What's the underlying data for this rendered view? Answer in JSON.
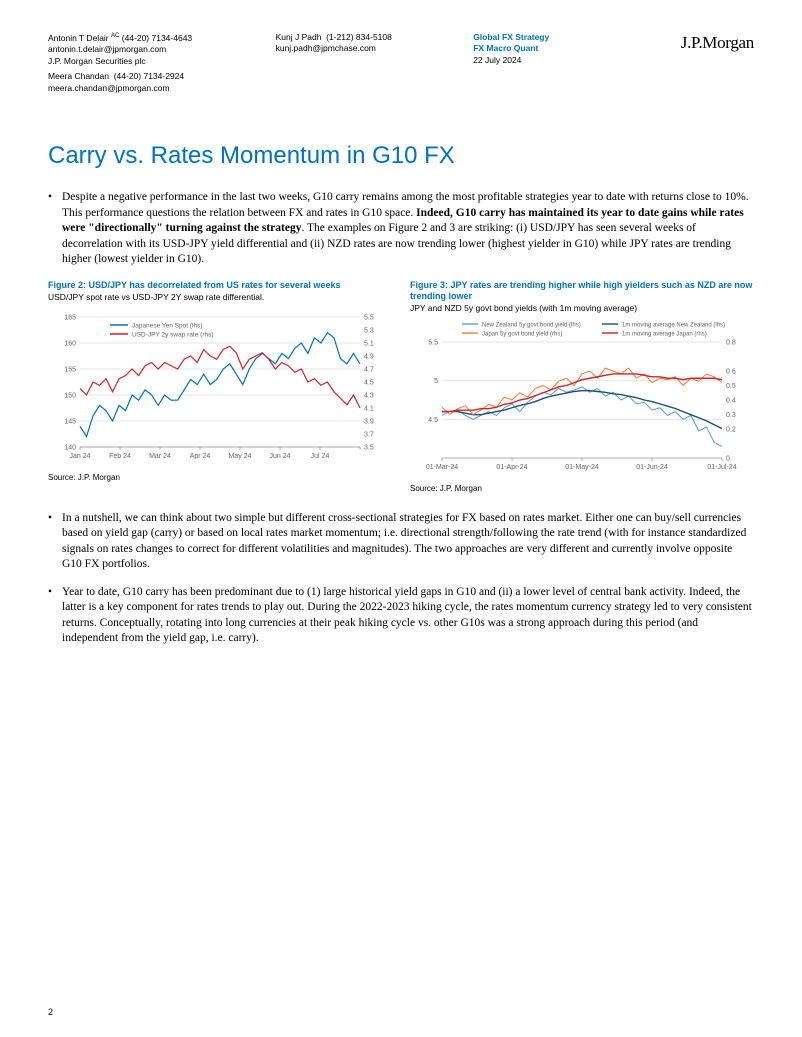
{
  "header": {
    "person1_name": "Antonin T Delair",
    "person1_sup": "AC",
    "person1_phone": "(44-20) 7134-4643",
    "person1_email": "antonin.t.delair@jpmorgan.com",
    "person1_org": "J.P. Morgan Securities plc",
    "person2_name": "Meera Chandan",
    "person2_phone": "(44-20) 7134-2924",
    "person2_email": "meera.chandan@jpmorgan.com",
    "person3_name": "Kunj J Padh",
    "person3_phone": "(1-212) 834-5108",
    "person3_email": "kunj.padh@jpmchase.com",
    "dept1": "Global FX Strategy",
    "dept2": "FX Macro Quant",
    "date": "22 July 2024",
    "logo": "J.P.Morgan"
  },
  "title": "Carry vs. Rates Momentum in G10 FX",
  "bullets": {
    "b1a": "Despite a negative performance in the last two weeks, G10 carry remains among the most profitable strategies year to date with returns close to 10%. This performance questions the relation between FX and rates in G10 space. ",
    "b1b": "Indeed, G10 carry has maintained its year to date gains while rates were \"directionally\" turning against the strategy",
    "b1c": ". The examples on Figure 2 and 3 are striking: (i) USD/JPY has seen several weeks of decorrelation with its USD-JPY yield differential and (ii) NZD rates are now trending lower (highest yielder in G10) while JPY rates are trending higher (lowest yielder in G10).",
    "b2": "In a nutshell, we can think about two simple but different cross-sectional strategies for FX based on rates market. Either one can buy/sell currencies based on yield gap (carry) or based on local rates market momentum; i.e. directional strength/following the rate trend (with for instance standardized signals on rates changes to correct for different volatilities and magnitudes). The two approaches are very different and currently involve opposite G10 FX portfolios.",
    "b3": "Year to date, G10 carry has been predominant due to (1) large historical yield gaps in G10 and (ii) a lower level of central bank activity. Indeed, the latter is a key component for rates trends to play out. During the 2022-2023 hiking cycle, the rates momentum currency strategy led to very consistent returns. Conceptually, rotating into long currencies at their peak hiking cycle vs. other G10s was a strong approach during this period (and independent from the yield gap, i.e. carry)."
  },
  "fig2": {
    "title": "Figure 2: USD/JPY has decorrelated from US rates for several weeks",
    "subtitle": "USD/JPY spot rate vs USD-JPY 2Y swap rate differential.",
    "source": "Source: J.P. Morgan",
    "legend1": "Japanese Yen Spot (lhs)",
    "legend2": "USD-JPY 2y swap rate (rhs)",
    "color1": "#0072c6",
    "color2": "#d6202a",
    "grid_color": "#cccccc",
    "text_color": "#666666",
    "y1_ticks": [
      140,
      145,
      150,
      155,
      160,
      165
    ],
    "y2_ticks": [
      3.5,
      3.7,
      3.9,
      4.1,
      4.3,
      4.5,
      4.7,
      4.9,
      5.1,
      5.3,
      5.5
    ],
    "x_labels": [
      "Jan 24",
      "Feb 24",
      "Mar 24",
      "Apr 24",
      "May 24",
      "Jun 24",
      "Jul 24",
      ""
    ],
    "series1": [
      144,
      142,
      146,
      148,
      147,
      145,
      148,
      147,
      150,
      149,
      151,
      150,
      148,
      150,
      149,
      149,
      151,
      153,
      152,
      154,
      152,
      153,
      155,
      156,
      154,
      152,
      155,
      157,
      158,
      157,
      156,
      158,
      157,
      159,
      160,
      158,
      161,
      160,
      162,
      161,
      157,
      156,
      158,
      156
    ],
    "series2": [
      4.4,
      4.3,
      4.5,
      4.45,
      4.55,
      4.35,
      4.55,
      4.6,
      4.7,
      4.6,
      4.75,
      4.8,
      4.7,
      4.8,
      4.75,
      4.7,
      4.85,
      4.9,
      4.8,
      5.0,
      4.9,
      4.85,
      5.0,
      5.05,
      4.95,
      4.7,
      4.85,
      4.9,
      4.95,
      4.85,
      4.7,
      4.8,
      4.75,
      4.65,
      4.7,
      4.5,
      4.55,
      4.45,
      4.5,
      4.35,
      4.25,
      4.15,
      4.3,
      4.1
    ]
  },
  "fig3": {
    "title": "Figure 3: JPY rates are trending higher while high yielders such as NZD are now trending lower",
    "subtitle": "JPY and NZD 5y govt bond yields (with 1m moving average)",
    "source": "Source: J.P. Morgan",
    "legend1": "New Zealand 5y govt bond yield (lhs)",
    "legend2": "1m moving average New Zealand (lhs)",
    "legend3": "Japan 5y govt bond yield (rhs)",
    "legend4": "1m moving average Japan (rhs)",
    "color_nz": "#5b9bd5",
    "color_nz_ma": "#1f4e79",
    "color_jp": "#ed7d31",
    "color_jp_ma": "#d6202a",
    "grid_color": "#cccccc",
    "text_color": "#666666",
    "y1_ticks": [
      4.5,
      5,
      5.5
    ],
    "y2_ticks": [
      0,
      0.2,
      0.3,
      0.4,
      0.5,
      0.6,
      0.8
    ],
    "x_labels": [
      "01-Mar-24",
      "01-Apr-24",
      "01-May-24",
      "01-Jun-24",
      "01-Jul-24"
    ],
    "nz": [
      4.55,
      4.6,
      4.62,
      4.55,
      4.5,
      4.55,
      4.6,
      4.55,
      4.65,
      4.7,
      4.6,
      4.72,
      4.8,
      4.85,
      4.82,
      4.9,
      4.85,
      4.88,
      4.92,
      4.85,
      4.9,
      4.8,
      4.85,
      4.75,
      4.8,
      4.7,
      4.72,
      4.62,
      4.65,
      4.55,
      4.6,
      4.5,
      4.55,
      4.35,
      4.4,
      4.2,
      4.15
    ],
    "nz_ma": [
      4.6,
      4.6,
      4.6,
      4.58,
      4.56,
      4.56,
      4.58,
      4.6,
      4.62,
      4.65,
      4.68,
      4.7,
      4.73,
      4.77,
      4.8,
      4.82,
      4.84,
      4.86,
      4.87,
      4.87,
      4.86,
      4.85,
      4.83,
      4.82,
      4.8,
      4.78,
      4.75,
      4.73,
      4.7,
      4.67,
      4.64,
      4.6,
      4.56,
      4.52,
      4.48,
      4.43,
      4.38
    ],
    "jp": [
      0.35,
      0.3,
      0.34,
      0.36,
      0.3,
      0.33,
      0.37,
      0.35,
      0.42,
      0.4,
      0.45,
      0.42,
      0.48,
      0.5,
      0.47,
      0.53,
      0.55,
      0.5,
      0.58,
      0.6,
      0.55,
      0.62,
      0.6,
      0.58,
      0.62,
      0.55,
      0.58,
      0.52,
      0.55,
      0.54,
      0.56,
      0.5,
      0.55,
      0.53,
      0.58,
      0.56,
      0.52
    ],
    "jp_ma": [
      0.32,
      0.32,
      0.33,
      0.33,
      0.33,
      0.34,
      0.34,
      0.35,
      0.37,
      0.38,
      0.4,
      0.41,
      0.43,
      0.45,
      0.47,
      0.49,
      0.5,
      0.52,
      0.54,
      0.55,
      0.56,
      0.57,
      0.58,
      0.58,
      0.58,
      0.58,
      0.57,
      0.56,
      0.56,
      0.55,
      0.55,
      0.54,
      0.55,
      0.55,
      0.55,
      0.55,
      0.54
    ]
  },
  "page_number": "2"
}
